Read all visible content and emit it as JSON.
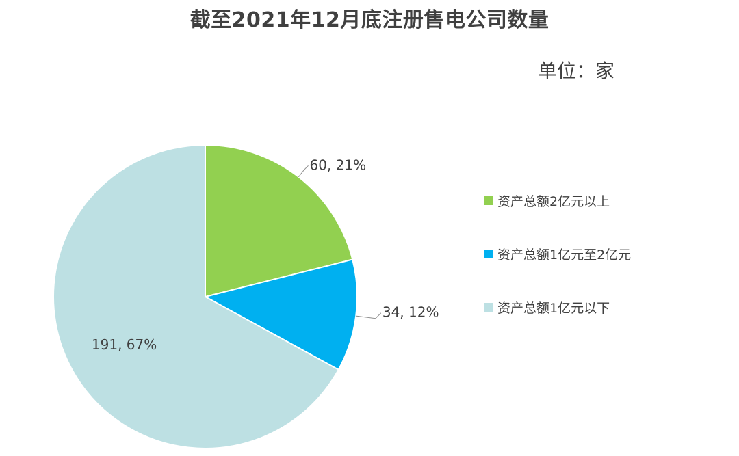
{
  "title": "截至2021年12月底注册售电公司数量",
  "unit_label": "单位：家",
  "chart_data": {
    "type": "pie",
    "title": "截至2021年12月底注册售电公司数量",
    "unit": "单位：家",
    "legend_position": "right",
    "slices": [
      {
        "name": "资产总额2亿元以上",
        "value": 60,
        "percent": "21%",
        "label": "60, 21%",
        "color": "#92d050"
      },
      {
        "name": "资产总额1亿元至2亿元",
        "value": 34,
        "percent": "12%",
        "label": "34, 12%",
        "color": "#00b0f0"
      },
      {
        "name": "资产总额1亿元以下",
        "value": 191,
        "percent": "67%",
        "label": "191, 67%",
        "color": "#bde0e3"
      }
    ]
  }
}
